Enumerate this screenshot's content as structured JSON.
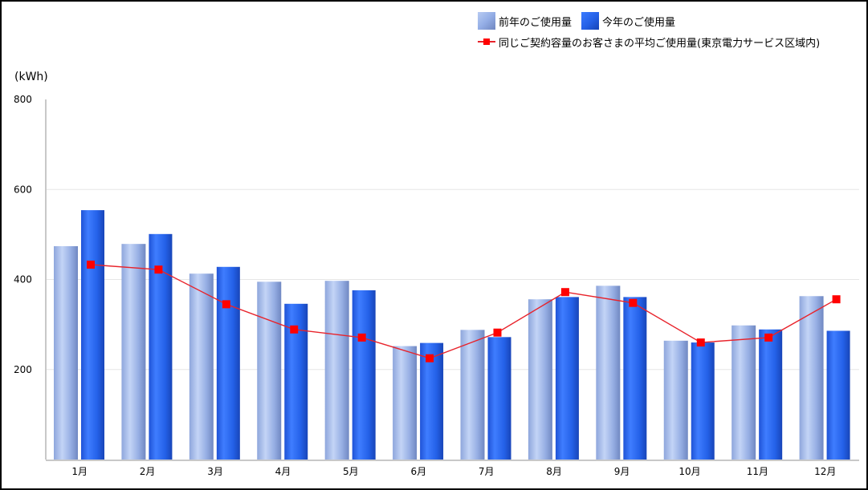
{
  "legend": {
    "prior": "前年のご使用量",
    "current": "今年のご使用量",
    "average": "同じご契約容量のお客さまの平均ご使用量(東京電力サービス区域内)"
  },
  "axis": {
    "unit_label": "(kWh)"
  },
  "colors": {
    "prior_bar": "#9db4ea",
    "current_bar": "#2460e6",
    "average_line": "#e8232b",
    "average_marker": "#ff0000",
    "gridline": "#e6e6e6",
    "axis": "#c8c8c8",
    "frame": "#000000"
  },
  "chart_data": {
    "type": "bar",
    "title": "",
    "xlabel": "",
    "ylabel": "(kWh)",
    "ylim": [
      0,
      800
    ],
    "yticks": [
      200,
      400,
      600,
      800
    ],
    "grid": true,
    "legend_position": "top-right",
    "categories": [
      "1月",
      "2月",
      "3月",
      "4月",
      "5月",
      "6月",
      "7月",
      "8月",
      "9月",
      "10月",
      "11月",
      "12月"
    ],
    "series": [
      {
        "name": "前年のご使用量",
        "type": "bar",
        "values": [
          474,
          479,
          413,
          395,
          397,
          252,
          288,
          356,
          386,
          264,
          298,
          363
        ]
      },
      {
        "name": "今年のご使用量",
        "type": "bar",
        "values": [
          554,
          501,
          428,
          346,
          376,
          259,
          272,
          361,
          361,
          260,
          289,
          286
        ]
      },
      {
        "name": "同じご契約容量のお客さまの平均ご使用量(東京電力サービス区域内)",
        "type": "line",
        "values": [
          433,
          422,
          345,
          289,
          271,
          225,
          282,
          372,
          348,
          260,
          271,
          356
        ]
      }
    ]
  }
}
